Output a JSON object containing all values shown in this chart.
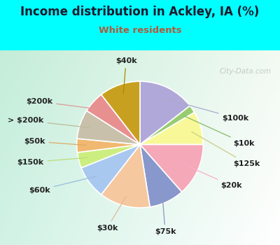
{
  "title": "Income distribution in Ackley, IA (%)",
  "subtitle": "White residents",
  "title_color": "#1a1a2e",
  "subtitle_color": "#b05a3a",
  "bg_cyan": "#00ffff",
  "watermark": "City-Data.com",
  "labels": [
    "$100k",
    "$10k",
    "$125k",
    "$20k",
    "$75k",
    "$30k",
    "$60k",
    "$150k",
    "$50k",
    "> $200k",
    "$200k",
    "$40k"
  ],
  "values": [
    14.5,
    2.0,
    8.5,
    13.5,
    9.0,
    13.0,
    8.5,
    4.0,
    3.5,
    7.5,
    5.5,
    10.5
  ],
  "colors": [
    "#b0a8d8",
    "#98cc70",
    "#f8f898",
    "#f5a8b8",
    "#8898cc",
    "#f5c8a0",
    "#a8c8f0",
    "#ccee80",
    "#f0b870",
    "#c8c0aa",
    "#e89090",
    "#c8a020"
  ],
  "label_fontsize": 8,
  "title_fontsize": 12,
  "subtitle_fontsize": 9.5,
  "figsize": [
    4.0,
    3.5
  ],
  "dpi": 100
}
